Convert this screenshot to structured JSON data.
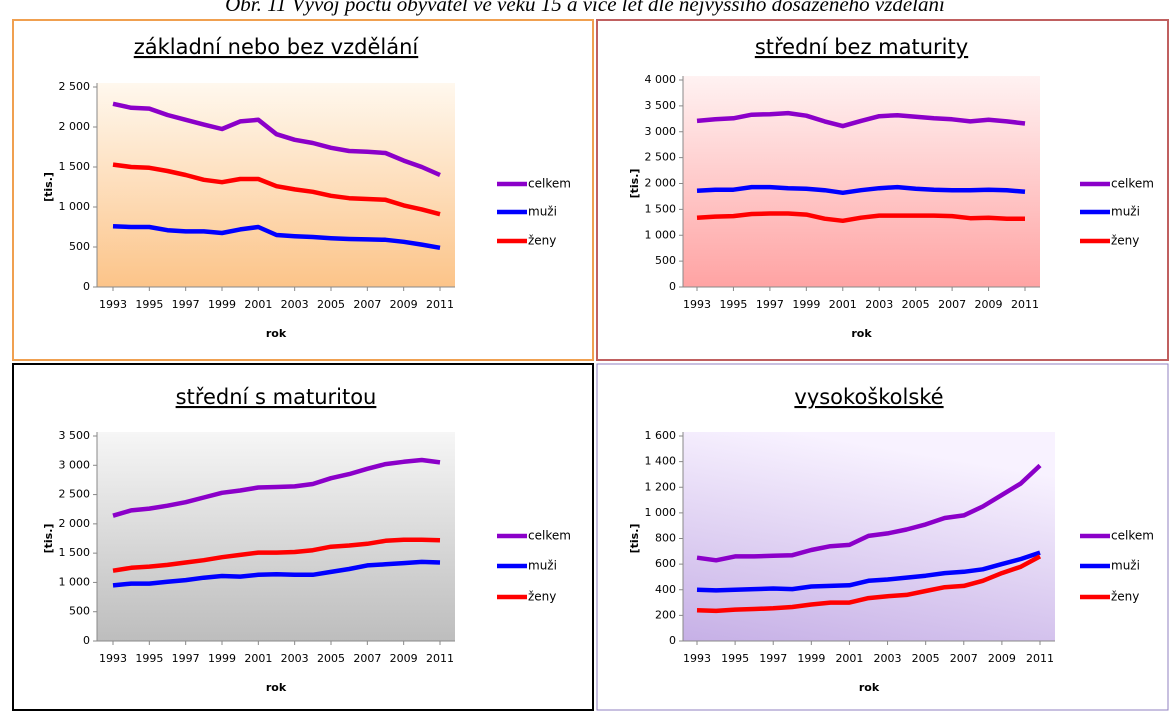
{
  "caption": "Obr. 11 Vývoj počtu obyvatel ve věku 15 a více let dle nejvyššího dosaženého vzdělání",
  "chart_data": [
    {
      "type": "line",
      "title": "základní nebo bez vzdělání",
      "xlabel": "rok",
      "ylabel": "[tis.]",
      "x": [
        1993,
        1994,
        1995,
        1996,
        1997,
        1998,
        1999,
        2000,
        2001,
        2002,
        2003,
        2004,
        2005,
        2006,
        2007,
        2008,
        2009,
        2010,
        2011
      ],
      "xlim": [
        1993,
        2011
      ],
      "xticks": [
        1993,
        1995,
        1997,
        1999,
        2001,
        2003,
        2005,
        2007,
        2009,
        2011
      ],
      "ylim": [
        0,
        2500
      ],
      "yticks": [
        0,
        500,
        {
          "value": 1000,
          "label": "1 000"
        },
        {
          "value": 1500,
          "label": "1 500"
        },
        {
          "value": 2000,
          "label": "2 000"
        },
        {
          "value": 2500,
          "label": "2 500"
        }
      ],
      "series": [
        {
          "name": "celkem",
          "color": "#8b00c9",
          "values": [
            2290,
            2240,
            2230,
            2150,
            2090,
            2030,
            1975,
            2070,
            2090,
            1910,
            1840,
            1800,
            1740,
            1700,
            1690,
            1675,
            1580,
            1500,
            1400
          ]
        },
        {
          "name": "muži",
          "color": "#0000ff",
          "values": [
            760,
            750,
            750,
            710,
            695,
            695,
            675,
            720,
            750,
            650,
            635,
            625,
            610,
            600,
            595,
            590,
            565,
            530,
            490
          ]
        },
        {
          "name": "ženy",
          "color": "#ff0000",
          "values": [
            1530,
            1500,
            1490,
            1450,
            1400,
            1340,
            1310,
            1350,
            1350,
            1260,
            1220,
            1190,
            1140,
            1110,
            1100,
            1090,
            1020,
            970,
            910
          ]
        }
      ]
    },
    {
      "type": "line",
      "title": "střední bez maturity",
      "xlabel": "rok",
      "ylabel": "[tis.]",
      "x": [
        1993,
        1994,
        1995,
        1996,
        1997,
        1998,
        1999,
        2000,
        2001,
        2002,
        2003,
        2004,
        2005,
        2006,
        2007,
        2008,
        2009,
        2010,
        2011
      ],
      "xlim": [
        1993,
        2011
      ],
      "xticks": [
        1993,
        1995,
        1997,
        1999,
        2001,
        2003,
        2005,
        2007,
        2009,
        2011
      ],
      "ylim": [
        0,
        4000
      ],
      "yticks": [
        0,
        500,
        {
          "value": 1000,
          "label": "1 000"
        },
        {
          "value": 1500,
          "label": "1 500"
        },
        {
          "value": 2000,
          "label": "2 000"
        },
        {
          "value": 2500,
          "label": "2 500"
        },
        {
          "value": 3000,
          "label": "3 000"
        },
        {
          "value": 3500,
          "label": "3 500"
        },
        {
          "value": 4000,
          "label": "4 000"
        }
      ],
      "series": [
        {
          "name": "celkem",
          "color": "#8b00c9",
          "values": [
            3210,
            3240,
            3260,
            3330,
            3340,
            3360,
            3310,
            3200,
            3110,
            3210,
            3300,
            3320,
            3290,
            3260,
            3240,
            3200,
            3230,
            3200,
            3160
          ]
        },
        {
          "name": "muži",
          "color": "#0000ff",
          "values": [
            1860,
            1880,
            1880,
            1930,
            1930,
            1910,
            1900,
            1870,
            1820,
            1870,
            1910,
            1930,
            1900,
            1880,
            1870,
            1870,
            1880,
            1870,
            1840
          ]
        },
        {
          "name": "ženy",
          "color": "#ff0000",
          "values": [
            1340,
            1360,
            1370,
            1410,
            1420,
            1420,
            1400,
            1320,
            1280,
            1340,
            1380,
            1380,
            1380,
            1380,
            1370,
            1330,
            1340,
            1320,
            1320
          ]
        }
      ]
    },
    {
      "type": "line",
      "title": "střední s maturitou",
      "xlabel": "rok",
      "ylabel": "[tis.]",
      "x": [
        1993,
        1994,
        1995,
        1996,
        1997,
        1998,
        1999,
        2000,
        2001,
        2002,
        2003,
        2004,
        2005,
        2006,
        2007,
        2008,
        2009,
        2010,
        2011
      ],
      "xlim": [
        1993,
        2011
      ],
      "xticks": [
        1993,
        1995,
        1997,
        1999,
        2001,
        2003,
        2005,
        2007,
        2009,
        2011
      ],
      "ylim": [
        0,
        3500
      ],
      "yticks": [
        0,
        500,
        {
          "value": 1000,
          "label": "1 000"
        },
        {
          "value": 1500,
          "label": "1 500"
        },
        {
          "value": 2000,
          "label": "2 000"
        },
        {
          "value": 2500,
          "label": "2 500"
        },
        {
          "value": 3000,
          "label": "3 000"
        },
        {
          "value": 3500,
          "label": "3 500"
        }
      ],
      "series": [
        {
          "name": "celkem",
          "color": "#8b00c9",
          "values": [
            2140,
            2230,
            2260,
            2310,
            2370,
            2450,
            2530,
            2570,
            2620,
            2630,
            2640,
            2680,
            2780,
            2850,
            2940,
            3020,
            3060,
            3090,
            3050
          ]
        },
        {
          "name": "muži",
          "color": "#0000ff",
          "values": [
            950,
            980,
            980,
            1010,
            1040,
            1080,
            1110,
            1100,
            1130,
            1140,
            1130,
            1130,
            1180,
            1230,
            1290,
            1310,
            1330,
            1350,
            1340
          ]
        },
        {
          "name": "ženy",
          "color": "#ff0000",
          "values": [
            1200,
            1250,
            1270,
            1300,
            1340,
            1380,
            1430,
            1470,
            1510,
            1510,
            1520,
            1550,
            1610,
            1630,
            1660,
            1710,
            1730,
            1730,
            1720
          ]
        }
      ]
    },
    {
      "type": "line",
      "title": "vysokoškolské",
      "xlabel": "rok",
      "ylabel": "[tis.]",
      "x": [
        1993,
        1994,
        1995,
        1996,
        1997,
        1998,
        1999,
        2000,
        2001,
        2002,
        2003,
        2004,
        2005,
        2006,
        2007,
        2008,
        2009,
        2010,
        2011
      ],
      "xlim": [
        1993,
        2011
      ],
      "xticks": [
        1993,
        1995,
        1997,
        1999,
        2001,
        2003,
        2005,
        2007,
        2009,
        2011
      ],
      "ylim": [
        0,
        1600
      ],
      "yticks": [
        0,
        200,
        400,
        600,
        800,
        {
          "value": 1000,
          "label": "1 000"
        },
        {
          "value": 1200,
          "label": "1 200"
        },
        {
          "value": 1400,
          "label": "1 400"
        },
        {
          "value": 1600,
          "label": "1 600"
        }
      ],
      "series": [
        {
          "name": "celkem",
          "color": "#8b00c9",
          "values": [
            650,
            630,
            660,
            660,
            665,
            670,
            710,
            740,
            750,
            820,
            840,
            870,
            910,
            960,
            980,
            1050,
            1140,
            1230,
            1370
          ]
        },
        {
          "name": "muži",
          "color": "#0000ff",
          "values": [
            400,
            395,
            400,
            405,
            410,
            405,
            425,
            430,
            435,
            470,
            480,
            495,
            510,
            530,
            540,
            560,
            600,
            640,
            690
          ]
        },
        {
          "name": "ženy",
          "color": "#ff0000",
          "values": [
            240,
            235,
            245,
            250,
            255,
            265,
            285,
            300,
            300,
            335,
            350,
            360,
            390,
            420,
            430,
            470,
            530,
            580,
            660
          ]
        }
      ]
    }
  ]
}
